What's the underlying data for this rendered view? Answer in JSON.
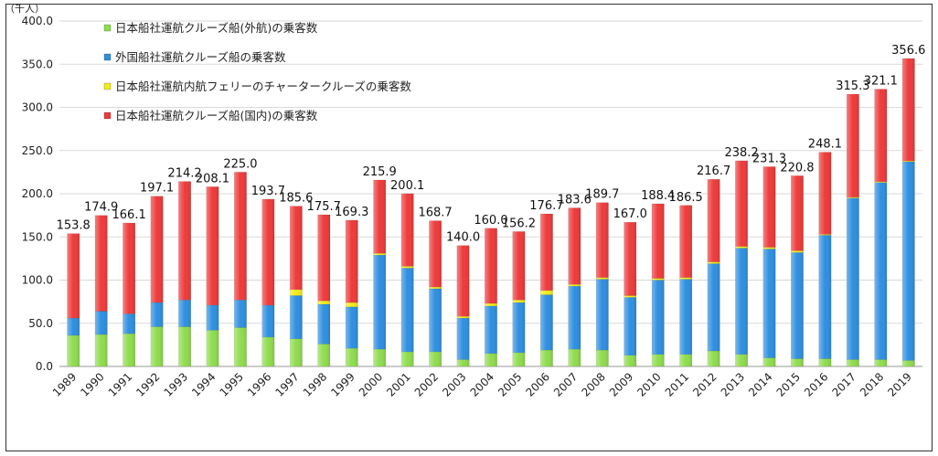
{
  "chart_data": {
    "type": "bar",
    "stacked": true,
    "ylabel": "（千人）",
    "ylim": [
      0,
      400
    ],
    "yticks": [
      "0.0",
      "50.0",
      "100.0",
      "150.0",
      "200.0",
      "250.0",
      "300.0",
      "350.0",
      "400.0"
    ],
    "grid": true,
    "legend_position": "top-left",
    "categories": [
      "1989",
      "1990",
      "1991",
      "1992",
      "1993",
      "1994",
      "1995",
      "1996",
      "1997",
      "1998",
      "1999",
      "2000",
      "2001",
      "2002",
      "2003",
      "2004",
      "2005",
      "2006",
      "2007",
      "2008",
      "2009",
      "2010",
      "2011",
      "2012",
      "2013",
      "2014",
      "2015",
      "2016",
      "2017",
      "2018",
      "2019"
    ],
    "series": [
      {
        "name": "日本船社運航クルーズ船(外航)の乗客数",
        "color": "#8fdc4e",
        "values": [
          36,
          37,
          38,
          46,
          46,
          42,
          45,
          34,
          32,
          26,
          21,
          20,
          17,
          17,
          8,
          15,
          16,
          19,
          20,
          19,
          13,
          14,
          14,
          18,
          14,
          10,
          9,
          9,
          8,
          8,
          7
        ]
      },
      {
        "name": "外国船社運航クルーズ船の乗客数",
        "color": "#2e8fe0",
        "values": [
          20,
          27,
          23,
          28,
          31,
          29,
          32,
          37,
          50,
          46,
          48,
          109,
          97,
          73,
          48,
          55,
          58,
          64,
          73,
          82,
          67,
          86,
          87,
          101,
          123,
          126,
          123,
          143,
          187,
          205,
          230
        ]
      },
      {
        "name": "日本船社運航内航フェリーのチャータークルーズの乗客数",
        "color": "#f2ec1a",
        "values": [
          0,
          0,
          0,
          0,
          0,
          0,
          0,
          0,
          7,
          4,
          5,
          2,
          2,
          2,
          2,
          3,
          3,
          5,
          2,
          2,
          2,
          2,
          2,
          2,
          2,
          2,
          2,
          1,
          1,
          1,
          1
        ]
      },
      {
        "name": "日本船社運航クルーズ船(国内)の乗客数",
        "color": "#ee3a3a",
        "values": [
          97.8,
          110.9,
          105.1,
          123.1,
          137.2,
          137.1,
          148.0,
          122.7,
          96.6,
          99.7,
          95.3,
          84.9,
          84.1,
          76.7,
          82.0,
          87.0,
          79.2,
          88.7,
          88.6,
          86.7,
          85.0,
          86.4,
          83.5,
          95.7,
          99.2,
          93.3,
          86.8,
          95.1,
          119.3,
          107.1,
          118.6
        ]
      }
    ],
    "totals": [
      "153.8",
      "174.9",
      "166.1",
      "197.1",
      "214.2",
      "208.1",
      "225.0",
      "193.7",
      "185.6",
      "175.7",
      "169.3",
      "215.9",
      "200.1",
      "168.7",
      "140.0",
      "160.0",
      "156.2",
      "176.7",
      "183.6",
      "189.7",
      "167.0",
      "188.4",
      "186.5",
      "216.7",
      "238.2",
      "231.3",
      "220.8",
      "248.1",
      "315.3",
      "321.1",
      "356.6"
    ],
    "totals_values": [
      153.8,
      174.9,
      166.1,
      197.1,
      214.2,
      208.1,
      225.0,
      193.7,
      185.6,
      175.7,
      169.3,
      215.9,
      200.1,
      168.7,
      140.0,
      160.0,
      156.2,
      176.7,
      183.6,
      189.7,
      167.0,
      188.4,
      186.5,
      216.7,
      238.2,
      231.3,
      220.8,
      248.1,
      315.3,
      321.1,
      356.6
    ]
  }
}
